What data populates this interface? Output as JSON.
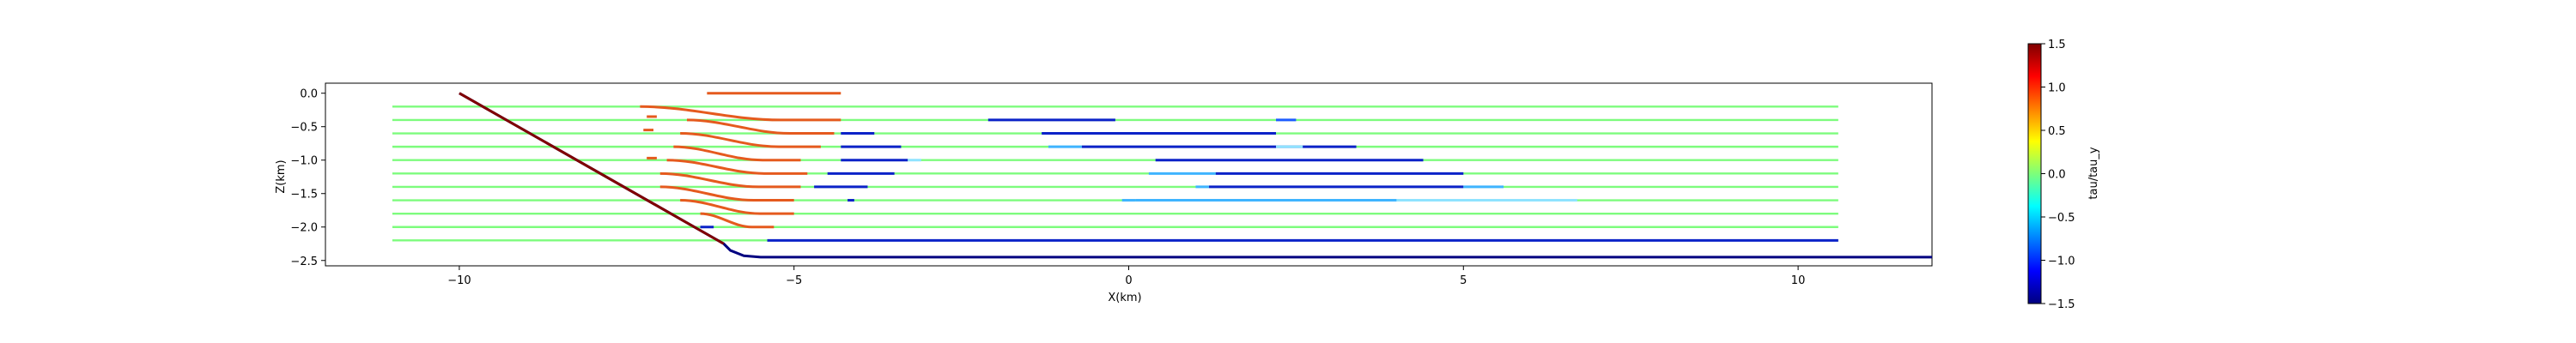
{
  "chart_data": {
    "type": "line",
    "xlabel": "X(km)",
    "ylabel": "Z(km)",
    "xlim": [
      -12,
      12
    ],
    "ylim": [
      -2.58,
      0.15
    ],
    "x_ticks": [
      -10,
      -5,
      0,
      5,
      10
    ],
    "x_tick_labels": [
      "−10",
      "−5",
      "0",
      "5",
      "10"
    ],
    "y_ticks": [
      0.0,
      -0.5,
      -1.0,
      -1.5,
      -2.0,
      -2.5
    ],
    "y_tick_labels": [
      "0.0",
      "−0.5",
      "−1.0",
      "−1.5",
      "−2.0",
      "−2.5"
    ],
    "grid": false,
    "colorbar": {
      "label": "tau/tau_y",
      "range": [
        -1.5,
        1.5
      ],
      "ticks": [
        1.5,
        1.0,
        0.5,
        0.0,
        -0.5,
        -1.0,
        -1.5
      ],
      "tick_labels": [
        "1.5",
        "1.0",
        "0.5",
        "0.0",
        "−0.5",
        "−1.0",
        "−1.5"
      ],
      "colormap": "jet"
    },
    "bathymetry": {
      "color": "#000080",
      "points": [
        [
          -10,
          0
        ],
        [
          -6.05,
          -2.25
        ],
        [
          -5.95,
          -2.35
        ],
        [
          -5.75,
          -2.43
        ],
        [
          -5.5,
          -2.45
        ],
        [
          12,
          -2.45
        ]
      ]
    },
    "fault": {
      "color": "#800000",
      "points": [
        [
          -10,
          0
        ],
        [
          -6.05,
          -2.25
        ]
      ]
    },
    "layer_depths": [
      -0.2,
      -0.4,
      -0.6,
      -0.8,
      -1.0,
      -1.2,
      -1.4,
      -1.6,
      -1.8,
      -2.0,
      -2.2
    ],
    "green_extent": [
      -11,
      10.6
    ],
    "green_color": "#7dfc7d",
    "red_color": "#e55a1e",
    "blue_bottom": {
      "color": "#0b22c8",
      "x_range": [
        -5.4,
        10.6
      ],
      "z": -2.2
    },
    "red_curves": [
      {
        "z_deep": 0.0,
        "z_shallow": 0.0,
        "x_start": -6.3,
        "x_end": -4.3
      },
      {
        "z_deep": -0.2,
        "z_shallow": -0.4,
        "x_start": -7.3,
        "x_end": -4.3
      },
      {
        "z_deep": -0.4,
        "z_shallow": -0.6,
        "x_start": -6.6,
        "x_end": -4.4
      },
      {
        "z_deep": -0.6,
        "z_shallow": -0.8,
        "x_start": -6.7,
        "x_end": -4.6
      },
      {
        "z_deep": -0.8,
        "z_shallow": -1.0,
        "x_start": -6.8,
        "x_end": -4.9
      },
      {
        "z_deep": -1.0,
        "z_shallow": -1.2,
        "x_start": -6.9,
        "x_end": -4.8
      },
      {
        "z_deep": -1.2,
        "z_shallow": -1.4,
        "x_start": -7.0,
        "x_end": -4.9
      },
      {
        "z_deep": -1.4,
        "z_shallow": -1.6,
        "x_start": -7.0,
        "x_end": -5.0
      },
      {
        "z_deep": -1.6,
        "z_shallow": -1.8,
        "x_start": -6.7,
        "x_end": -5.0
      },
      {
        "z_deep": -1.8,
        "z_shallow": -2.0,
        "x_start": -6.4,
        "x_end": -5.3
      }
    ],
    "segments": [
      {
        "x": [
          -7.2,
          -7.05
        ],
        "z": -0.35,
        "color": "#e55a1e"
      },
      {
        "x": [
          -7.25,
          -7.1
        ],
        "z": -0.55,
        "color": "#e55a1e"
      },
      {
        "x": [
          -7.2,
          -7.05
        ],
        "z": -0.97,
        "color": "#e55a1e"
      },
      {
        "x": [
          -2.1,
          -0.2
        ],
        "z": -0.4,
        "color": "#0b22c8"
      },
      {
        "x": [
          2.2,
          2.5
        ],
        "z": -0.4,
        "color": "#1e5cff"
      },
      {
        "x": [
          -4.3,
          -3.8
        ],
        "z": -0.6,
        "color": "#0b22c8"
      },
      {
        "x": [
          -1.3,
          2.2
        ],
        "z": -0.6,
        "color": "#0b22c8"
      },
      {
        "x": [
          -4.3,
          -3.4
        ],
        "z": -0.8,
        "color": "#0b22c8"
      },
      {
        "x": [
          -1.2,
          -0.7
        ],
        "z": -0.8,
        "color": "#3fb4ff"
      },
      {
        "x": [
          -0.7,
          3.4
        ],
        "z": -0.8,
        "color": "#0b22c8"
      },
      {
        "x": [
          2.2,
          2.6
        ],
        "z": -0.8,
        "color": "#8fe3ff"
      },
      {
        "x": [
          -4.3,
          -3.3
        ],
        "z": -1.0,
        "color": "#0b22c8"
      },
      {
        "x": [
          -3.3,
          -3.1
        ],
        "z": -1.0,
        "color": "#8fe3ff"
      },
      {
        "x": [
          0.4,
          4.4
        ],
        "z": -1.0,
        "color": "#0b22c8"
      },
      {
        "x": [
          -4.5,
          -3.5
        ],
        "z": -1.2,
        "color": "#0b22c8"
      },
      {
        "x": [
          0.3,
          1.3
        ],
        "z": -1.2,
        "color": "#3fb4ff"
      },
      {
        "x": [
          1.3,
          5.0
        ],
        "z": -1.2,
        "color": "#0b22c8"
      },
      {
        "x": [
          -4.7,
          -3.9
        ],
        "z": -1.4,
        "color": "#0b22c8"
      },
      {
        "x": [
          1.0,
          1.2
        ],
        "z": -1.4,
        "color": "#3fb4ff"
      },
      {
        "x": [
          1.2,
          5.0
        ],
        "z": -1.4,
        "color": "#0b22c8"
      },
      {
        "x": [
          5.0,
          5.6
        ],
        "z": -1.4,
        "color": "#3fb4ff"
      },
      {
        "x": [
          -4.2,
          -4.1
        ],
        "z": -1.6,
        "color": "#0b22c8"
      },
      {
        "x": [
          -0.1,
          0.1
        ],
        "z": -1.6,
        "color": "#3fb4ff"
      },
      {
        "x": [
          0.1,
          4.4
        ],
        "z": -1.6,
        "color": "#3fb4ff"
      },
      {
        "x": [
          4.0,
          6.7
        ],
        "z": -1.6,
        "color": "#8fe3ff"
      },
      {
        "x": [
          -6.4,
          -6.2
        ],
        "z": -2.0,
        "color": "#0b22c8"
      }
    ]
  }
}
